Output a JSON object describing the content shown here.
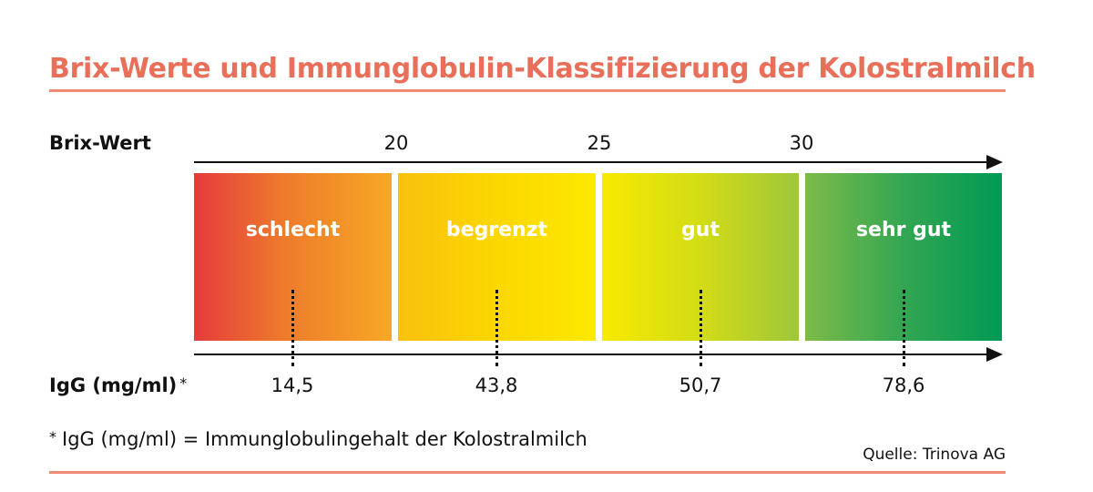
{
  "title": "Brix-Werte und Immunglobulin-Klassifizierung der Kolostralmilch",
  "brix_label": "Brix-Wert",
  "brix_ticks": [
    "20",
    "25",
    "30"
  ],
  "igg_label": "IgG (mg/ml)",
  "igg_label_marker": "*",
  "categories": [
    {
      "label": "schlecht",
      "igg": "14,5"
    },
    {
      "label": "begrenzt",
      "igg": "43,8"
    },
    {
      "label": "gut",
      "igg": "50,7"
    },
    {
      "label": "sehr gut",
      "igg": "78,6"
    }
  ],
  "footnote_marker": "*",
  "footnote": "IgG (mg/ml) = Immunglobulingehalt der Kolostralmilch",
  "source": "Quelle: Trinova AG",
  "colors": {
    "title": "#e8705a",
    "rule": "#ef8a74",
    "schlecht": "#e53b3b",
    "begrenzt": "#fcd700",
    "gut": "#d3dc16",
    "sehr_gut": "#009a54"
  }
}
